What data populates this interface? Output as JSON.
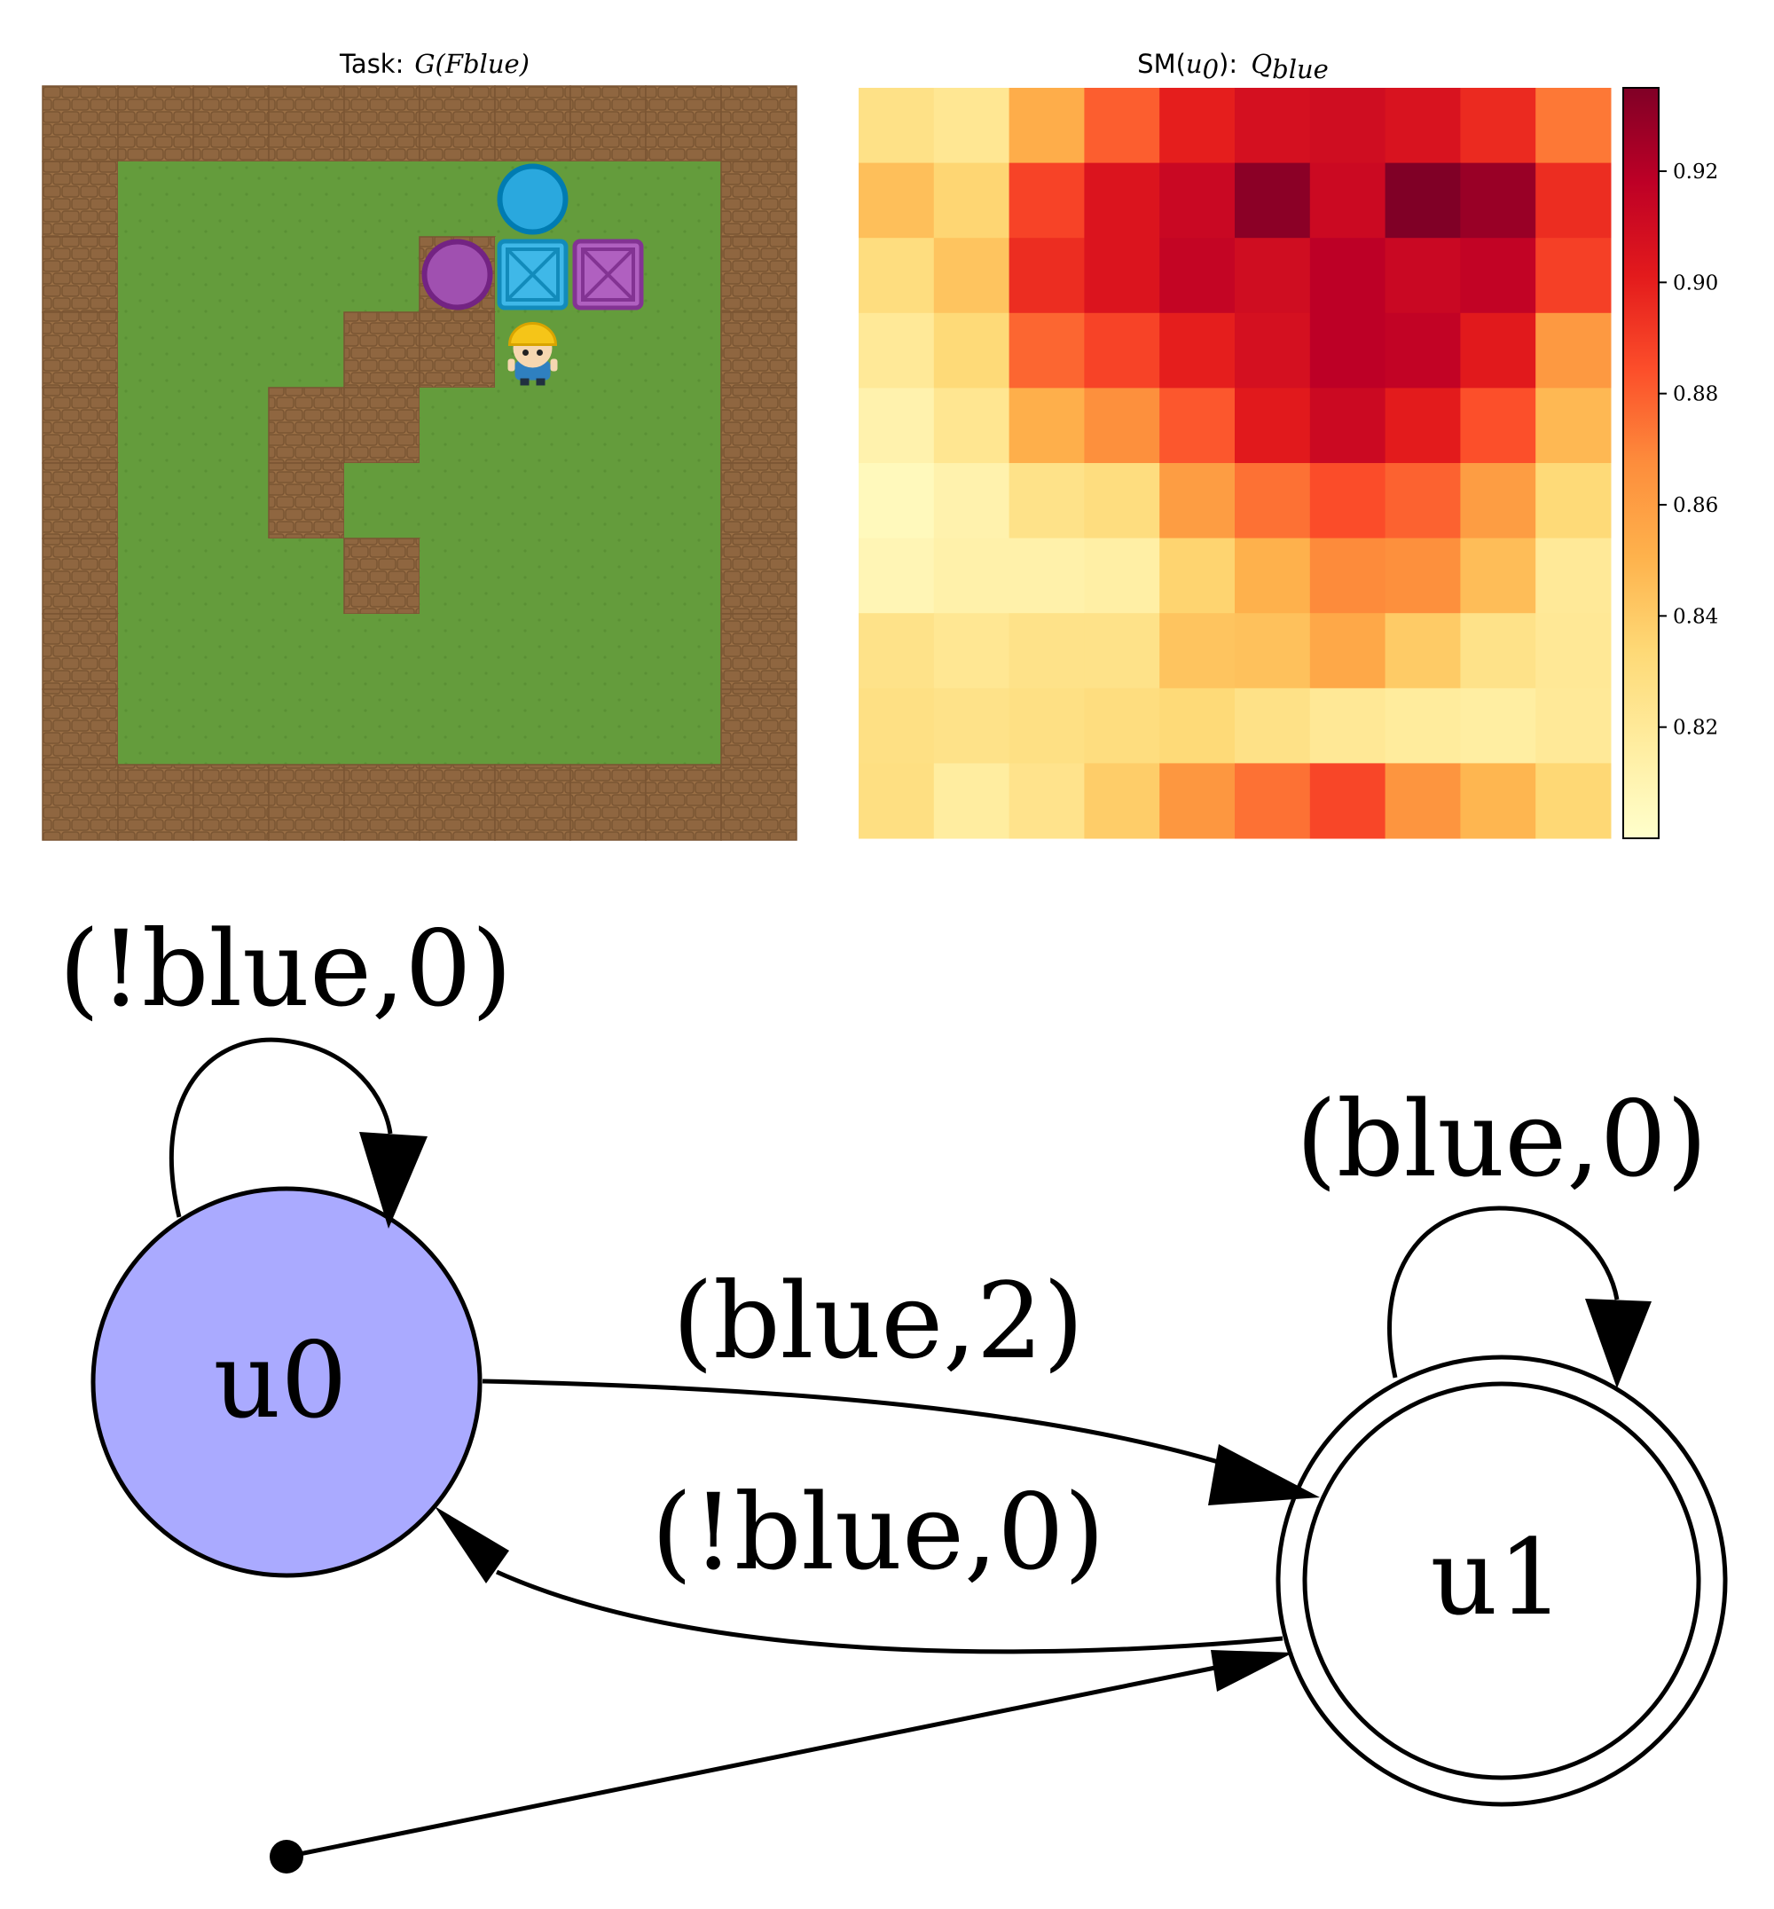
{
  "task_panel": {
    "title_prefix": "Task:",
    "formula": "G(Fblue)",
    "grid_size": 10,
    "walls": [
      [
        2,
        5
      ],
      [
        3,
        4
      ],
      [
        3,
        5
      ],
      [
        4,
        3
      ],
      [
        4,
        4
      ],
      [
        5,
        3
      ],
      [
        6,
        4
      ]
    ],
    "objects": [
      {
        "type": "circle",
        "color": "#2aa8de",
        "row": 1,
        "col": 6
      },
      {
        "type": "circle",
        "color": "#a050b0",
        "row": 2,
        "col": 5
      },
      {
        "type": "box",
        "color": "#3fb8e8",
        "row": 2,
        "col": 6
      },
      {
        "type": "box",
        "color": "#b060c0",
        "row": 2,
        "col": 7
      },
      {
        "type": "agent",
        "row": 3,
        "col": 6
      }
    ]
  },
  "heatmap_panel": {
    "title_prefix": "SM(",
    "title_state": "u",
    "title_state_sub": "0",
    "title_mid": "): ",
    "title_q": "Q",
    "title_q_sub": "blue"
  },
  "chart_data": {
    "type": "heatmap",
    "title": "SM(u0): Q_blue",
    "rows": 10,
    "cols": 10,
    "colormap": "YlOrRd",
    "vmin": 0.8,
    "vmax": 0.935,
    "values": [
      [
        0.827,
        0.822,
        0.853,
        0.88,
        0.9,
        0.908,
        0.91,
        0.906,
        0.896,
        0.873
      ],
      [
        0.845,
        0.835,
        0.888,
        0.905,
        0.913,
        0.932,
        0.912,
        0.935,
        0.928,
        0.895
      ],
      [
        0.83,
        0.843,
        0.895,
        0.905,
        0.915,
        0.91,
        0.918,
        0.913,
        0.916,
        0.889
      ],
      [
        0.82,
        0.833,
        0.878,
        0.888,
        0.9,
        0.908,
        0.918,
        0.916,
        0.902,
        0.862
      ],
      [
        0.812,
        0.823,
        0.852,
        0.866,
        0.882,
        0.902,
        0.912,
        0.901,
        0.884,
        0.848
      ],
      [
        0.806,
        0.812,
        0.826,
        0.83,
        0.86,
        0.875,
        0.885,
        0.879,
        0.86,
        0.833
      ],
      [
        0.809,
        0.813,
        0.813,
        0.815,
        0.836,
        0.851,
        0.868,
        0.866,
        0.846,
        0.82
      ],
      [
        0.826,
        0.822,
        0.826,
        0.826,
        0.843,
        0.844,
        0.855,
        0.84,
        0.826,
        0.821
      ],
      [
        0.828,
        0.826,
        0.828,
        0.83,
        0.833,
        0.827,
        0.821,
        0.818,
        0.816,
        0.82
      ],
      [
        0.829,
        0.817,
        0.825,
        0.839,
        0.863,
        0.875,
        0.887,
        0.864,
        0.849,
        0.834
      ]
    ],
    "colorbar_ticks": [
      0.82,
      0.84,
      0.86,
      0.88,
      0.9,
      0.92
    ],
    "colorbar_labels": [
      "0.82",
      "0.84",
      "0.86",
      "0.88",
      "0.90",
      "0.92"
    ]
  },
  "automaton": {
    "nodes": [
      {
        "id": "u0",
        "label": "u0",
        "fill": "#aaaaff",
        "accepting": false,
        "current": true
      },
      {
        "id": "u1",
        "label": "u1",
        "fill": "#ffffff",
        "accepting": true,
        "current": false
      }
    ],
    "edges": [
      {
        "id": "u0-self",
        "label": "(!blue,0)"
      },
      {
        "id": "u1-self",
        "label": "(blue,0)"
      },
      {
        "id": "u0-u1",
        "label": "(blue,2)"
      },
      {
        "id": "u1-u0",
        "label": "(!blue,0)"
      }
    ],
    "start_node": "u1"
  }
}
